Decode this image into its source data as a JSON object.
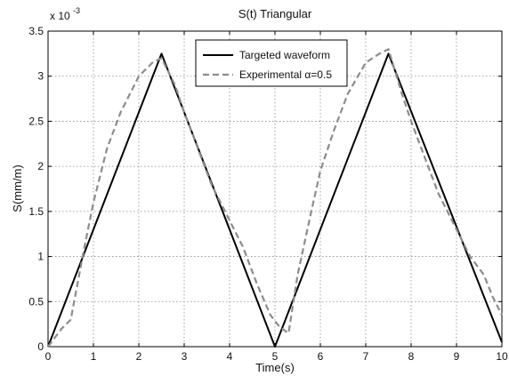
{
  "chart_data": {
    "type": "line",
    "title": "S(t) Triangular",
    "xlabel": "Time(s)",
    "ylabel": "S(mm/m)",
    "y_exponent_label": "x 10",
    "y_exponent_power": "-3",
    "xlim": [
      0,
      10
    ],
    "ylim": [
      0,
      3.5
    ],
    "x_ticks": [
      0,
      1,
      2,
      3,
      4,
      5,
      6,
      7,
      8,
      9,
      10
    ],
    "x_tick_labels": [
      "0",
      "1",
      "2",
      "3",
      "4",
      "5",
      "6",
      "7",
      "8",
      "9",
      "10"
    ],
    "y_ticks": [
      0,
      0.5,
      1,
      1.5,
      2,
      2.5,
      3,
      3.5
    ],
    "y_tick_labels": [
      "0",
      "0.5",
      "1",
      "1.5",
      "2",
      "2.5",
      "3",
      "3.5"
    ],
    "grid": true,
    "legend_position": "top-center",
    "series": [
      {
        "name": "Targeted waveform",
        "color": "#000000",
        "style": "solid",
        "x": [
          0,
          2.5,
          5,
          7.5,
          10
        ],
        "y": [
          0,
          3.25,
          0,
          3.25,
          0.05
        ]
      },
      {
        "name": "Experimental α=0.5",
        "color": "#8c8c8c",
        "style": "dashed",
        "x": [
          0,
          0.3,
          0.5,
          0.8,
          1.0,
          1.3,
          1.6,
          2.0,
          2.3,
          2.5,
          2.8,
          3.0,
          3.3,
          3.6,
          4.0,
          4.3,
          4.6,
          4.9,
          5.1,
          5.3,
          5.5,
          5.8,
          6.0,
          6.3,
          6.6,
          7.0,
          7.3,
          7.5,
          7.8,
          8.0,
          8.3,
          8.6,
          9.0,
          9.3,
          9.6,
          9.8,
          10.0
        ],
        "y": [
          0,
          0.2,
          0.3,
          1.1,
          1.6,
          2.2,
          2.6,
          3.0,
          3.15,
          3.2,
          2.9,
          2.6,
          2.2,
          1.8,
          1.4,
          1.1,
          0.7,
          0.35,
          0.22,
          0.15,
          0.8,
          1.5,
          1.95,
          2.4,
          2.8,
          3.15,
          3.25,
          3.3,
          2.8,
          2.5,
          2.1,
          1.7,
          1.3,
          1.0,
          0.8,
          0.55,
          0.35
        ]
      }
    ]
  }
}
